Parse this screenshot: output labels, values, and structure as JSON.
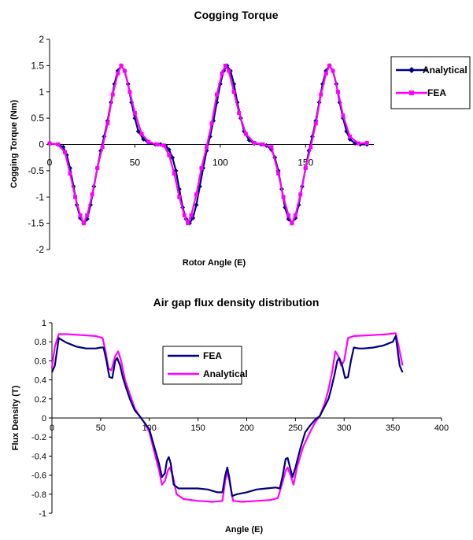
{
  "chart_data": [
    {
      "type": "line",
      "title": "Cogging Torque",
      "xlabel": "Rotor Angle (E)",
      "ylabel": "Cogging Torque (Nm)",
      "xlim": [
        0,
        190
      ],
      "ylim": [
        -2,
        2
      ],
      "x_ticks": [
        "0",
        "50",
        "100",
        "150"
      ],
      "y_ticks": [
        "2",
        "1.5",
        "1",
        "0.5",
        "0",
        "-0.5",
        "-1",
        "-1.5",
        "-2"
      ],
      "legend_position": "right",
      "series": [
        {
          "name": "Analytical",
          "color": "#000080",
          "marker": "diamond",
          "x": [
            0,
            5,
            8,
            10,
            12,
            14,
            16,
            18,
            20,
            22,
            24,
            26,
            28,
            30,
            32,
            34,
            36,
            38,
            40,
            42,
            44,
            46,
            48,
            50,
            52,
            55,
            58,
            62,
            65,
            68,
            70,
            72,
            74,
            76,
            78,
            80,
            82,
            84,
            86,
            88,
            90,
            92,
            94,
            96,
            98,
            100,
            102,
            104,
            106,
            108,
            110,
            112,
            114,
            117,
            120,
            124,
            127,
            130,
            132,
            134,
            136,
            138,
            140,
            142,
            144,
            146,
            148,
            150,
            152,
            154,
            156,
            158,
            160,
            162,
            164,
            166,
            168,
            170,
            172,
            174,
            176,
            179,
            182,
            186
          ],
          "y": [
            0.02,
            0.0,
            -0.05,
            -0.2,
            -0.45,
            -0.8,
            -1.15,
            -1.4,
            -1.5,
            -1.42,
            -1.15,
            -0.8,
            -0.45,
            -0.12,
            0.15,
            0.45,
            0.8,
            1.15,
            1.4,
            1.5,
            1.4,
            1.15,
            0.8,
            0.5,
            0.25,
            0.1,
            0.03,
            0.0,
            0.0,
            -0.03,
            -0.1,
            -0.25,
            -0.5,
            -0.85,
            -1.2,
            -1.42,
            -1.5,
            -1.4,
            -1.15,
            -0.8,
            -0.45,
            -0.12,
            0.15,
            0.45,
            0.8,
            1.15,
            1.4,
            1.5,
            1.4,
            1.15,
            0.8,
            0.5,
            0.25,
            0.08,
            0.02,
            0.0,
            -0.02,
            -0.1,
            -0.25,
            -0.5,
            -0.85,
            -1.2,
            -1.42,
            -1.5,
            -1.4,
            -1.15,
            -0.8,
            -0.45,
            -0.12,
            0.15,
            0.45,
            0.8,
            1.15,
            1.4,
            1.5,
            1.4,
            1.15,
            0.8,
            0.5,
            0.25,
            0.1,
            0.02,
            0.0,
            0.0
          ]
        },
        {
          "name": "FEA",
          "color": "#ff00ff",
          "marker": "square",
          "x": [
            0,
            5,
            9,
            12,
            15,
            18,
            20,
            22,
            25,
            28,
            31,
            34,
            37,
            40,
            42,
            44,
            47,
            50,
            54,
            58,
            63,
            67,
            70,
            73,
            76,
            79,
            81,
            83,
            86,
            89,
            92,
            95,
            98,
            101,
            103,
            105,
            108,
            111,
            115,
            120,
            125,
            130,
            134,
            137,
            140,
            142,
            144,
            147,
            150,
            153,
            156,
            159,
            162,
            164,
            166,
            169,
            172,
            176,
            181,
            186
          ],
          "y": [
            0.02,
            0.0,
            -0.15,
            -0.55,
            -1.0,
            -1.35,
            -1.5,
            -1.35,
            -0.95,
            -0.45,
            -0.05,
            0.4,
            0.95,
            1.35,
            1.5,
            1.4,
            1.0,
            0.6,
            0.2,
            0.05,
            0.0,
            -0.02,
            -0.2,
            -0.55,
            -1.0,
            -1.35,
            -1.5,
            -1.35,
            -0.95,
            -0.45,
            -0.05,
            0.4,
            0.95,
            1.35,
            1.5,
            1.4,
            1.0,
            0.6,
            0.2,
            0.03,
            0.0,
            -0.05,
            -0.55,
            -1.0,
            -1.35,
            -1.5,
            -1.35,
            -0.95,
            -0.45,
            -0.05,
            0.4,
            0.95,
            1.35,
            1.5,
            1.4,
            1.0,
            0.55,
            0.15,
            0.02,
            0.03
          ]
        }
      ]
    },
    {
      "type": "line",
      "title": "Air gap flux density distribution",
      "xlabel": "Angle (E)",
      "ylabel": "Flux Density (T)",
      "xlim": [
        0,
        400
      ],
      "ylim": [
        -1,
        1
      ],
      "x_ticks": [
        "0",
        "50",
        "100",
        "150",
        "200",
        "250",
        "300",
        "350",
        "400"
      ],
      "y_ticks": [
        "1",
        "0.8",
        "0.6",
        "0.4",
        "0.2",
        "0",
        "-0.2",
        "-0.4",
        "-0.6",
        "-0.8",
        "-1"
      ],
      "legend_position": "upper-left",
      "series": [
        {
          "name": "FEA",
          "color": "#000080",
          "x": [
            0,
            3,
            7,
            10,
            15,
            20,
            25,
            30,
            35,
            40,
            45,
            50,
            53,
            56,
            59,
            62,
            65,
            67,
            70,
            73,
            76,
            80,
            85,
            90,
            95,
            100,
            105,
            110,
            113,
            116,
            118,
            120,
            122,
            125,
            130,
            140,
            150,
            160,
            170,
            175,
            178,
            180,
            182,
            185,
            190,
            200,
            210,
            220,
            230,
            234,
            237,
            240,
            242,
            244,
            247,
            250,
            255,
            260,
            265,
            270,
            275,
            280,
            284,
            287,
            290,
            293,
            295,
            298,
            301,
            304,
            307,
            310,
            315,
            320,
            330,
            340,
            350,
            353,
            357,
            360
          ],
          "y": [
            0.48,
            0.55,
            0.84,
            0.82,
            0.79,
            0.77,
            0.75,
            0.74,
            0.73,
            0.73,
            0.73,
            0.74,
            0.74,
            0.6,
            0.43,
            0.42,
            0.6,
            0.63,
            0.55,
            0.42,
            0.32,
            0.2,
            0.08,
            0.02,
            -0.05,
            -0.12,
            -0.3,
            -0.48,
            -0.62,
            -0.58,
            -0.45,
            -0.41,
            -0.48,
            -0.7,
            -0.74,
            -0.74,
            -0.74,
            -0.75,
            -0.78,
            -0.78,
            -0.6,
            -0.52,
            -0.62,
            -0.82,
            -0.8,
            -0.78,
            -0.75,
            -0.74,
            -0.73,
            -0.74,
            -0.6,
            -0.43,
            -0.42,
            -0.5,
            -0.62,
            -0.52,
            -0.32,
            -0.15,
            -0.08,
            -0.02,
            0.02,
            0.12,
            0.2,
            0.32,
            0.45,
            0.6,
            0.63,
            0.55,
            0.42,
            0.43,
            0.6,
            0.74,
            0.73,
            0.73,
            0.74,
            0.76,
            0.8,
            0.86,
            0.55,
            0.48
          ]
        },
        {
          "name": "Analytical",
          "color": "#ff00ff",
          "x": [
            0,
            3,
            7,
            15,
            30,
            45,
            52,
            55,
            58,
            61,
            65,
            68,
            71,
            75,
            80,
            85,
            90,
            95,
            100,
            105,
            110,
            113,
            116,
            119,
            121,
            124,
            128,
            135,
            150,
            165,
            175,
            178,
            180,
            182,
            186,
            195,
            210,
            225,
            232,
            236,
            240,
            242,
            245,
            248,
            252,
            258,
            265,
            270,
            275,
            280,
            284,
            288,
            291,
            294,
            297,
            300,
            304,
            310,
            330,
            345,
            353,
            356,
            360
          ],
          "y": [
            0.53,
            0.75,
            0.88,
            0.88,
            0.87,
            0.86,
            0.84,
            0.7,
            0.52,
            0.5,
            0.65,
            0.7,
            0.6,
            0.4,
            0.25,
            0.1,
            0.02,
            -0.05,
            -0.15,
            -0.35,
            -0.55,
            -0.7,
            -0.66,
            -0.55,
            -0.52,
            -0.6,
            -0.8,
            -0.85,
            -0.87,
            -0.88,
            -0.87,
            -0.65,
            -0.57,
            -0.65,
            -0.87,
            -0.88,
            -0.87,
            -0.86,
            -0.84,
            -0.7,
            -0.55,
            -0.52,
            -0.6,
            -0.7,
            -0.5,
            -0.3,
            -0.15,
            -0.05,
            0.02,
            0.15,
            0.3,
            0.5,
            0.7,
            0.65,
            0.55,
            0.6,
            0.84,
            0.86,
            0.87,
            0.88,
            0.89,
            0.75,
            0.55
          ]
        }
      ]
    }
  ]
}
